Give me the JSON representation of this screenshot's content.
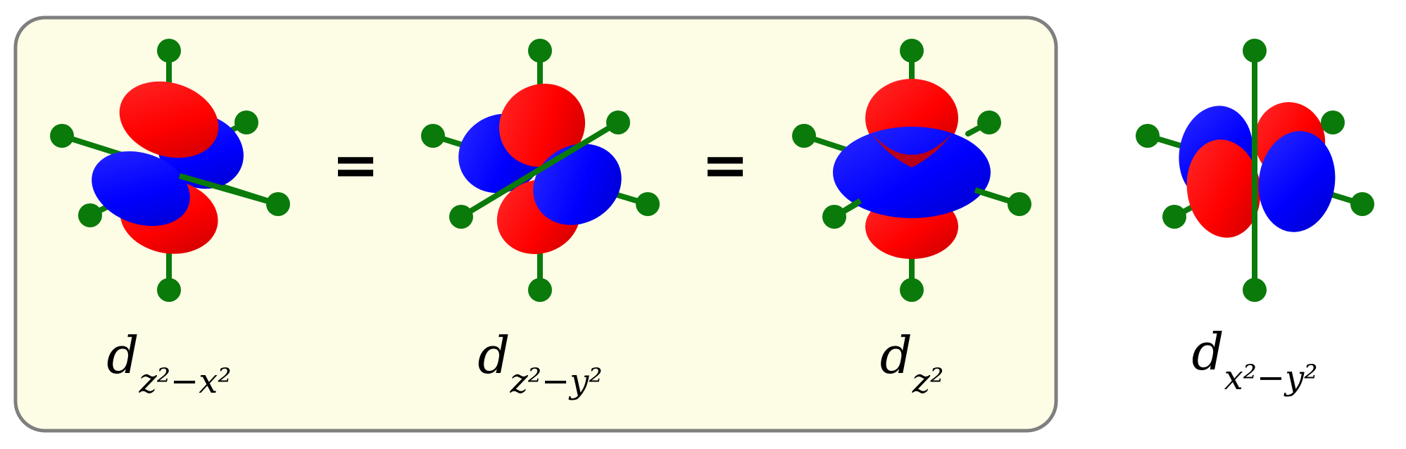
{
  "colors": {
    "panel_fill": "#fdfde6",
    "panel_border": "#7f7f7f",
    "positive_lobe": "#ff0000",
    "negative_lobe": "#0000ff",
    "ligand": "#0a7a0a"
  },
  "equation": {
    "operator_1": "=",
    "operator_2": "="
  },
  "orbitals": [
    {
      "id": "dz2-x2",
      "label_main": "d",
      "label_sub": "z²−x²"
    },
    {
      "id": "dz2-y2",
      "label_main": "d",
      "label_sub": "z²−y²"
    },
    {
      "id": "dz2",
      "label_main": "d",
      "label_sub": "z²"
    },
    {
      "id": "dx2-y2",
      "label_main": "d",
      "label_sub": "x²−y²"
    }
  ]
}
